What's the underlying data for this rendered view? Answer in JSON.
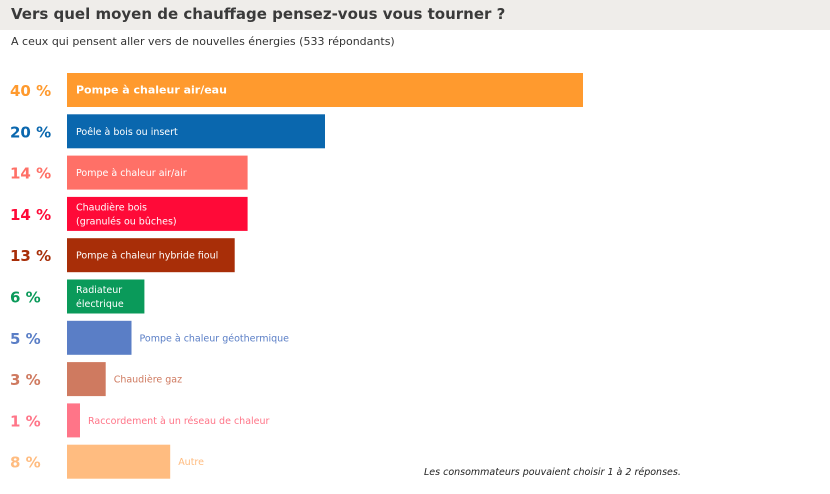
{
  "header": {
    "title": "Vers quel moyen de chauffage pensez-vous vous tourner ?",
    "subtitle": "A ceux qui pensent aller vers de nouvelles énergies (533 répondants)"
  },
  "footnote": "Les consommateurs pouvaient choisir 1 à 2 réponses.",
  "chart_data": {
    "type": "bar",
    "orientation": "horizontal",
    "title": "Vers quel moyen de chauffage pensez-vous vous tourner ?",
    "subtitle": "A ceux qui pensent aller vers de nouvelles énergies (533 répondants)",
    "unit": "%",
    "xlim": [
      0,
      40
    ],
    "grid": false,
    "legend": "none",
    "categories": [
      "Pompe à chaleur air/eau",
      "Poêle à bois ou insert",
      "Pompe à chaleur air/air",
      "Chaudière bois (granulés ou bûches)",
      "Pompe à chaleur hybride fioul",
      "Radiateur électrique",
      "Pompe à chaleur géothermique",
      "Chaudière gaz",
      "Raccordement à un réseau de chaleur",
      "Autre"
    ],
    "label_lines": [
      [
        "Pompe à chaleur air/eau"
      ],
      [
        "Poêle à bois ou insert"
      ],
      [
        "Pompe à chaleur air/air"
      ],
      [
        "Chaudière bois",
        "(granulés ou bûches)"
      ],
      [
        "Pompe à chaleur hybride fioul"
      ],
      [
        "Radiateur",
        "électrique"
      ],
      [
        "Pompe à chaleur géothermique"
      ],
      [
        "Chaudière gaz"
      ],
      [
        "Raccordement à un réseau de chaleur"
      ],
      [
        "Autre"
      ]
    ],
    "values": [
      40,
      20,
      14,
      14,
      13,
      6,
      5,
      3,
      1,
      8
    ],
    "value_labels": [
      "40 %",
      "20 %",
      "14 %",
      "14 %",
      "13 %",
      "6 %",
      "5 %",
      "3 %",
      "1 %",
      "8 %"
    ],
    "colors": [
      "#ff9a2e",
      "#0a67ae",
      "#ff7067",
      "#ff0a38",
      "#a82e08",
      "#0a9a5a",
      "#5a7ec6",
      "#cf7a60",
      "#ff7588",
      "#ffbc80"
    ],
    "label_inside": [
      true,
      true,
      true,
      true,
      true,
      true,
      false,
      false,
      false,
      false
    ]
  }
}
